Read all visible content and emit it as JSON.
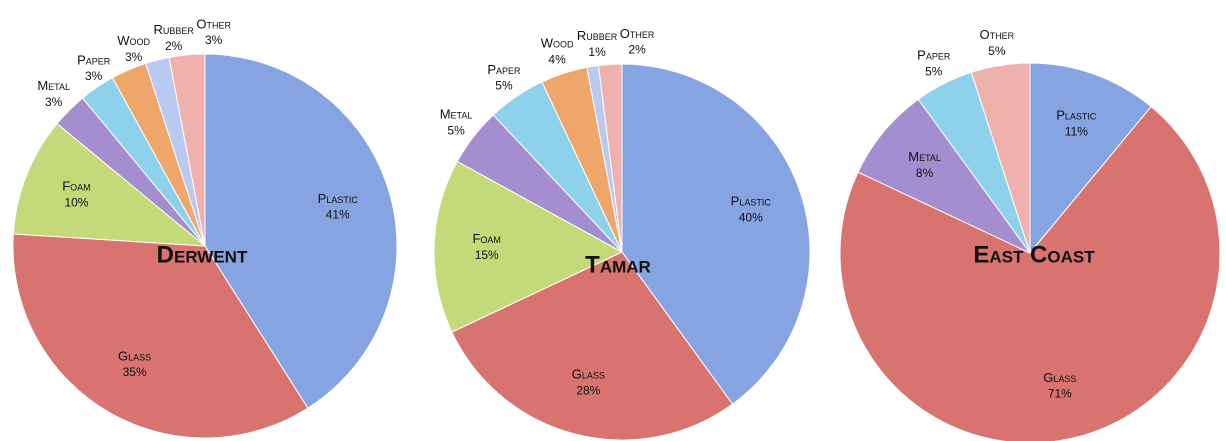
{
  "chart_data": [
    {
      "type": "pie",
      "title": "Derwent",
      "categories": [
        "Plastic",
        "Glass",
        "Foam",
        "Metal",
        "Paper",
        "Wood",
        "Rubber",
        "Other"
      ],
      "values": [
        41,
        35,
        10,
        3,
        3,
        3,
        2,
        3
      ],
      "value_labels": [
        "41%",
        "35%",
        "10%",
        "3%",
        "3%",
        "3%",
        "2%",
        "3%"
      ],
      "colors": [
        "#86a3e2",
        "#d8736f",
        "#c4da7a",
        "#a48ecf",
        "#8dd2ea",
        "#efa66a",
        "#b9c9f1",
        "#efb1ae"
      ]
    },
    {
      "type": "pie",
      "title": "Tamar",
      "categories": [
        "Plastic",
        "Glass",
        "Foam",
        "Metal",
        "Paper",
        "Wood",
        "Rubber",
        "Other"
      ],
      "values": [
        40,
        28,
        15,
        5,
        5,
        4,
        1,
        2
      ],
      "value_labels": [
        "40%",
        "28%",
        "15%",
        "5%",
        "5%",
        "4%",
        "1%",
        "2%"
      ],
      "colors": [
        "#86a3e2",
        "#d8736f",
        "#c4da7a",
        "#a48ecf",
        "#8dd2ea",
        "#efa66a",
        "#b9c9f1",
        "#efb1ae"
      ]
    },
    {
      "type": "pie",
      "title": "East Coast",
      "categories": [
        "Plastic",
        "Glass",
        "Metal",
        "Paper",
        "Other"
      ],
      "values": [
        11,
        71,
        8,
        5,
        5
      ],
      "value_labels": [
        "11%",
        "71%",
        "8%",
        "5%",
        "5%"
      ],
      "colors": [
        "#86a3e2",
        "#d8736f",
        "#a48ecf",
        "#8dd2ea",
        "#efb1ae"
      ]
    }
  ]
}
